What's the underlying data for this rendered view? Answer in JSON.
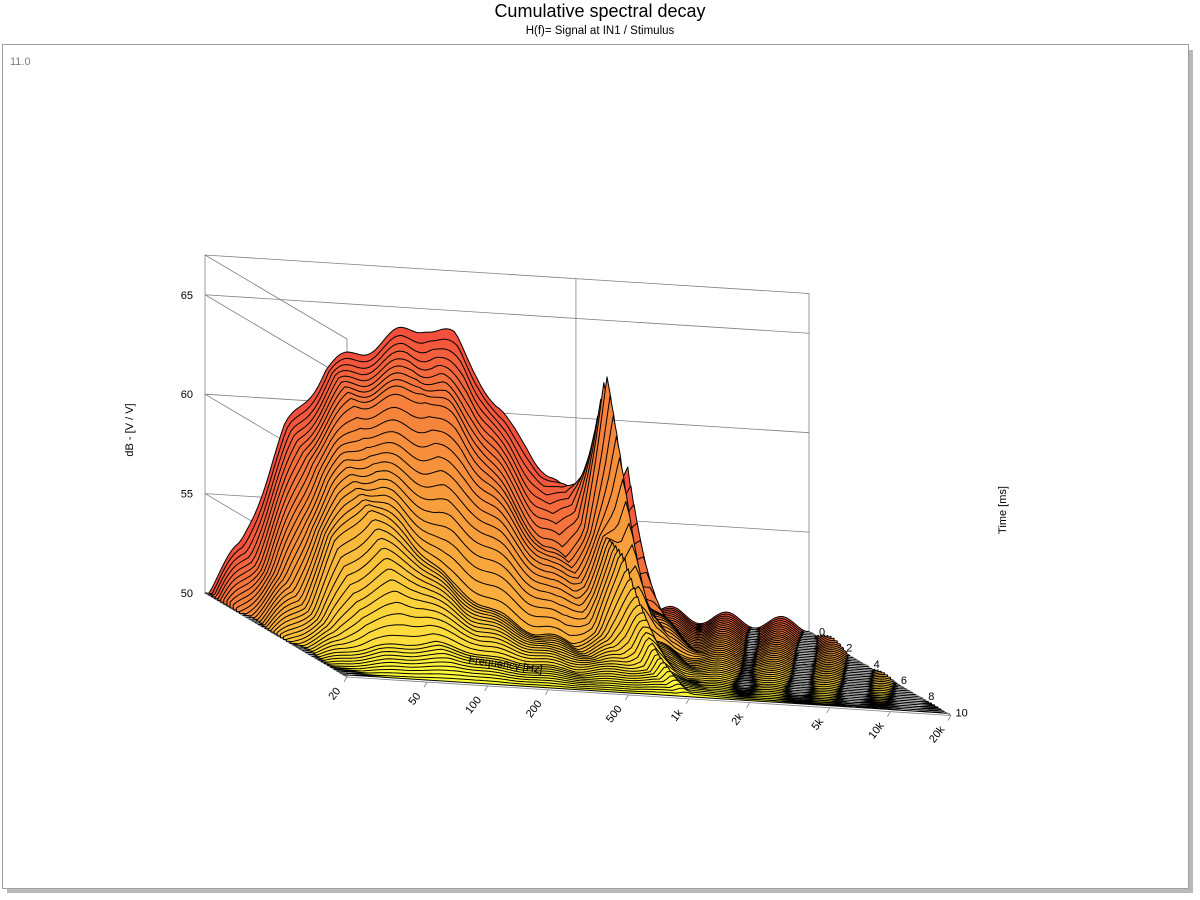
{
  "header": {
    "title": "Cumulative spectral decay",
    "subtitle": "H(f)= Signal at IN1 / Stimulus",
    "corner_label": "11.0"
  },
  "colors": {
    "front": "#ffff3c",
    "back": "#f2503c",
    "outline": "#000000",
    "grid": "#7f7f7f"
  },
  "chart_data": {
    "type": "waterfall",
    "title": "Cumulative spectral decay",
    "subtitle": "H(f)= Signal at IN1 / Stimulus",
    "xlabel": "Frequency [Hz]",
    "ylabel": "dB - [V / V]",
    "zlabel": "Time [ms]",
    "x_scale": "log",
    "xlim": [
      20,
      20000
    ],
    "ylim": [
      50,
      67
    ],
    "zlim": [
      0,
      10.4
    ],
    "x_ticks": [
      20,
      50,
      100,
      200,
      500,
      1000,
      2000,
      5000,
      10000,
      20000
    ],
    "x_tick_labels": [
      "20",
      "50",
      "100",
      "200",
      "500",
      "1k",
      "2k",
      "5k",
      "10k",
      "20k"
    ],
    "y_ticks": [
      50,
      55,
      60,
      65
    ],
    "z_ticks": [
      0,
      2,
      4,
      6,
      8,
      10
    ],
    "slice_count": 45,
    "slice_step_ms": 0.23,
    "profiles": [
      {
        "time_ms": 0,
        "freq_hz": [
          20,
          30,
          50,
          80,
          120,
          180,
          250,
          350,
          450,
          550,
          650,
          800,
          1000,
          1200,
          1500,
          1700,
          1850,
          2000,
          2100,
          2200,
          2350,
          2500,
          2700,
          3000,
          5000,
          20000
        ],
        "db": [
          50,
          52.5,
          58.5,
          61.7,
          62.7,
          63.6,
          64.2,
          63.6,
          62.0,
          60.3,
          59.3,
          58.5,
          57.0,
          56.2,
          55.8,
          56.2,
          57.5,
          59.6,
          57.5,
          55.8,
          56.5,
          57.8,
          55.5,
          50.6,
          50.4,
          50.3
        ]
      },
      {
        "time_ms": 2,
        "freq_hz": [
          20,
          30,
          50,
          80,
          120,
          180,
          250,
          350,
          500,
          700,
          900,
          1100,
          1300,
          1450,
          1550,
          1700,
          2000,
          3000,
          20000
        ],
        "db": [
          50,
          52.2,
          58.0,
          60.8,
          61.2,
          61.5,
          60.5,
          58.6,
          56.2,
          54.3,
          53.5,
          55.3,
          59.8,
          63.3,
          60.5,
          55.6,
          52.4,
          50.4,
          50.1
        ]
      },
      {
        "time_ms": 5,
        "freq_hz": [
          20,
          30,
          40,
          60,
          90,
          150,
          250,
          400,
          600,
          800,
          1000,
          1100,
          1200,
          1300,
          2000,
          20000
        ],
        "db": [
          50,
          51.5,
          54.8,
          56.8,
          55.5,
          53.2,
          51.8,
          50.9,
          50.5,
          51.2,
          53.8,
          55.2,
          53.0,
          51.2,
          50.3,
          50
        ]
      },
      {
        "time_ms": 8,
        "freq_hz": [
          20,
          40,
          80,
          150,
          400,
          900,
          1000,
          1100,
          1500,
          20000
        ],
        "db": [
          50,
          50.8,
          51.2,
          50.6,
          50.2,
          50.5,
          51.4,
          50.5,
          50.1,
          50
        ]
      },
      {
        "time_ms": 10.4,
        "freq_hz": [
          20,
          1000,
          20000
        ],
        "db": [
          50,
          50.1,
          50
        ]
      }
    ]
  }
}
